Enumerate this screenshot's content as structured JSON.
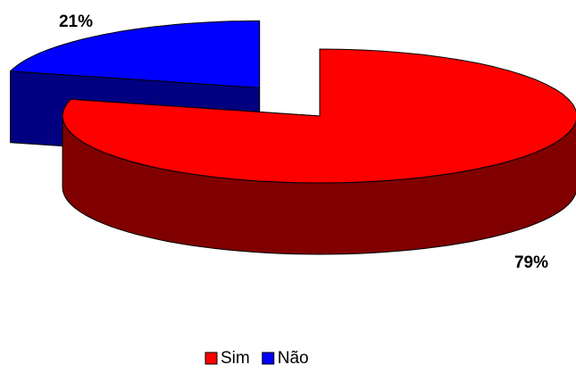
{
  "chart_data": {
    "type": "pie3d",
    "categories": [
      "Sim",
      "Não"
    ],
    "values": [
      79,
      21
    ],
    "value_labels": [
      "79%",
      "21%"
    ],
    "colors": [
      "#ff0000",
      "#0000ff"
    ],
    "legend": "bottom"
  }
}
